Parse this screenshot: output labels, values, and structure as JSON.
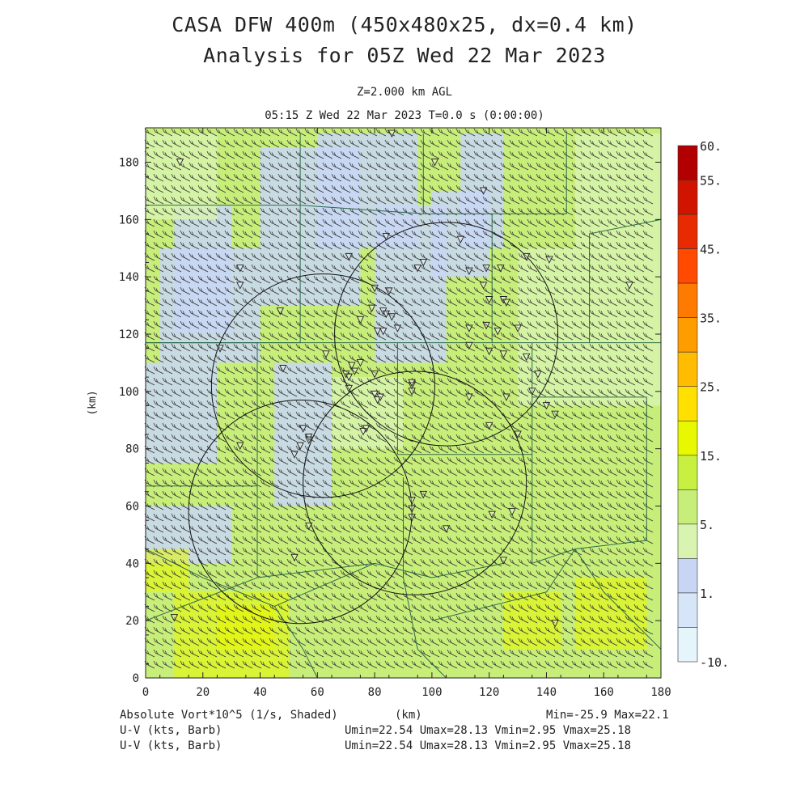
{
  "header": {
    "title_line1": "CASA DFW 400m (450x480x25, dx=0.4 km)",
    "title_line2": "Analysis for 05Z Wed 22 Mar 2023",
    "level": "Z=2.000 km AGL",
    "time": "05:15 Z Wed 22 Mar 2023    T=0.0 s (0:00:00)"
  },
  "axes": {
    "y_label": "(km)",
    "x_label": "(km)",
    "x_ticks": [
      "0",
      "20",
      "40",
      "60",
      "80",
      "100",
      "120",
      "140",
      "160",
      "180"
    ],
    "y_ticks": [
      "0",
      "20",
      "40",
      "60",
      "80",
      "100",
      "120",
      "140",
      "160",
      "180"
    ],
    "x_range": [
      0,
      180
    ],
    "y_range": [
      0,
      192
    ]
  },
  "colorbar": {
    "labels": [
      "60.",
      "55.",
      "45.",
      "35.",
      "25.",
      "15.",
      "5.",
      "1.",
      "-10."
    ],
    "colors": [
      "#b20000",
      "#d01400",
      "#e82a00",
      "#ff4a00",
      "#ff7a00",
      "#ff9c00",
      "#ffbc00",
      "#ffe000",
      "#e8f800",
      "#c8f040",
      "#c8ee7a",
      "#d8f4b0",
      "#c8d6f4",
      "#d6e6f8",
      "#e6f4fc"
    ]
  },
  "footer": {
    "field_label": "Absolute Vort*10^5 (1/s, Shaded)",
    "axis_unit": "(km)",
    "minmax": "Min=-25.9 Max=22.1",
    "wind1_label": "U-V (kts, Barb)",
    "wind1_stats": "Umin=22.54 Umax=28.13 Vmin=2.95 Vmax=25.18",
    "wind2_label": "U-V (kts, Barb)",
    "wind2_stats": "Umin=22.54 Umax=28.13 Vmin=2.95 Vmax=25.18"
  },
  "radars": [
    {
      "name": "radar-ring-nw",
      "center_km": [
        62,
        102
      ],
      "radius_km": 39
    },
    {
      "name": "radar-ring-ne",
      "center_km": [
        105,
        120
      ],
      "radius_km": 39
    },
    {
      "name": "radar-ring-center",
      "center_km": [
        94,
        68
      ],
      "radius_km": 39
    },
    {
      "name": "radar-ring-sw",
      "center_km": [
        54,
        58
      ],
      "radius_km": 39
    }
  ],
  "map_colors": {
    "background": "#c8ee7a",
    "light_green": "#d8f4b0",
    "blue": "#c8d6f4",
    "yellow": "#e8f800",
    "county_lines": "#2e6b4a",
    "barbs": "#333333"
  }
}
